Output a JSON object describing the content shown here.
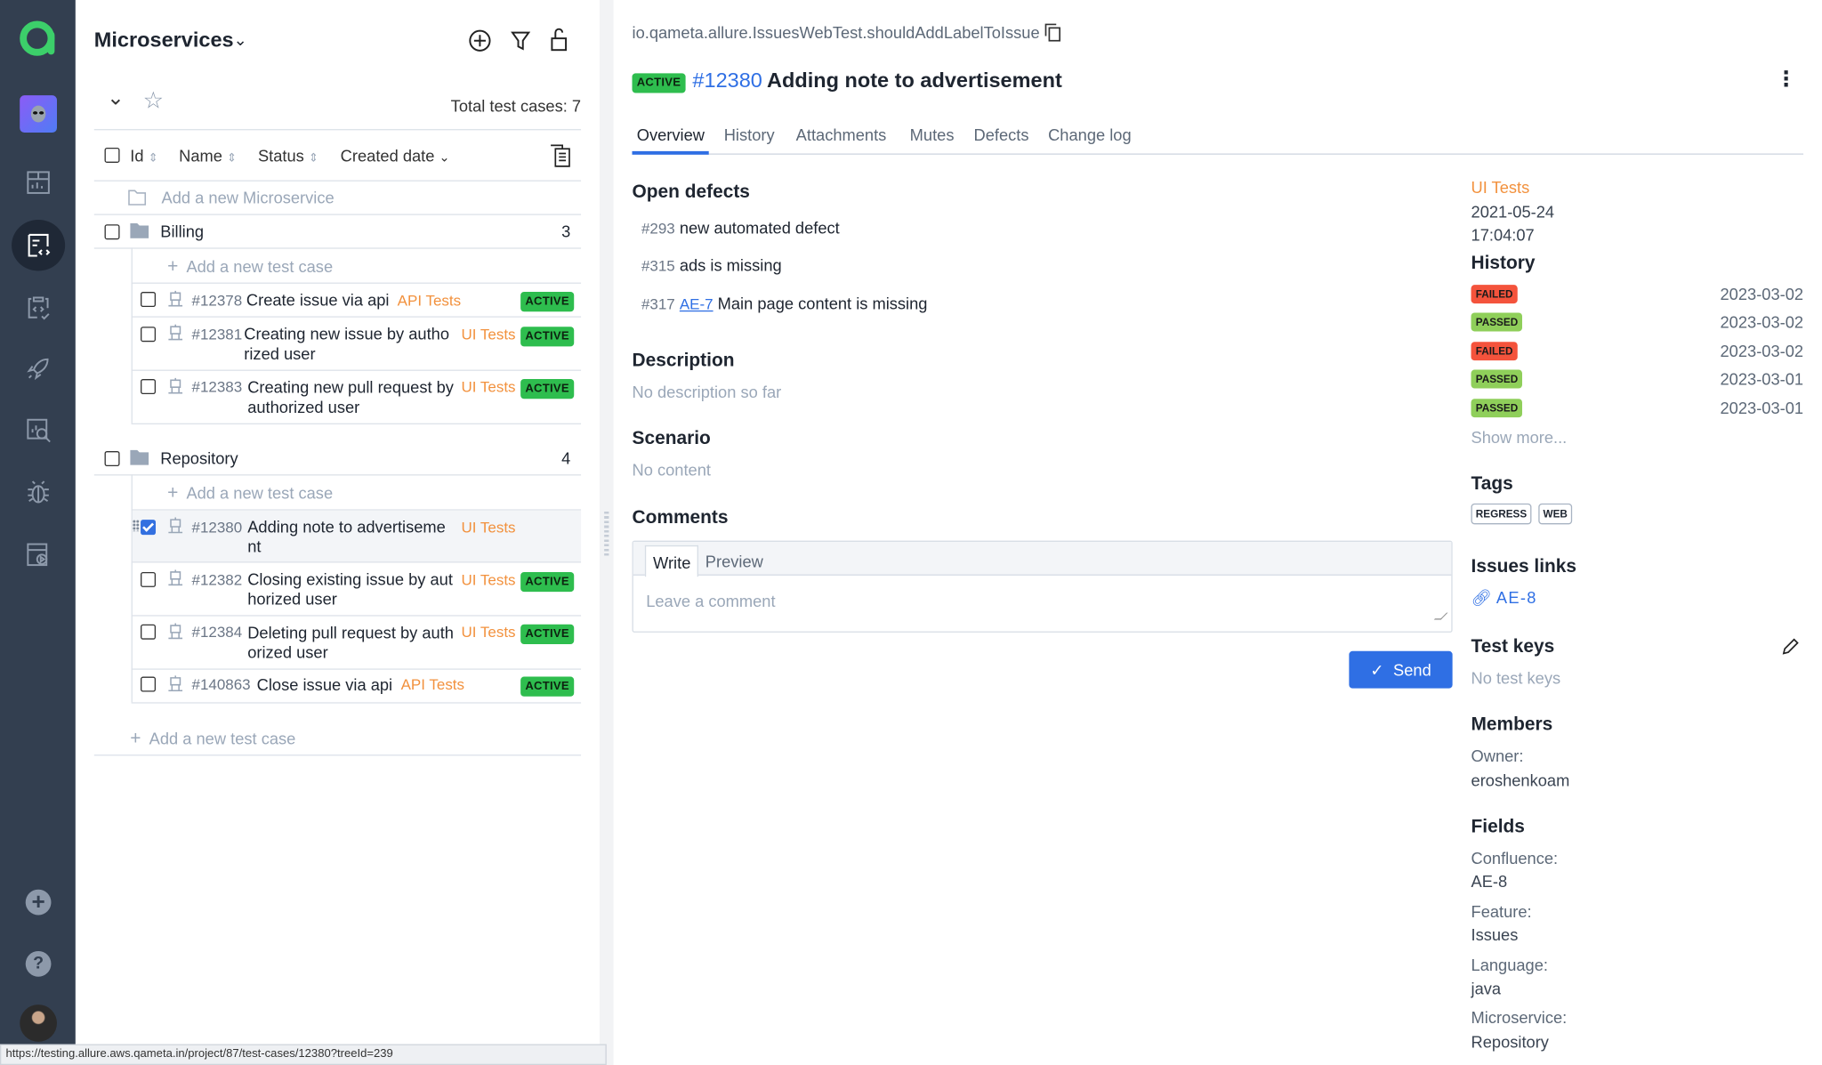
{
  "nav": {
    "items": [
      "dashboards-icon",
      "test-cases-icon",
      "test-plans-icon",
      "launches-icon",
      "analytics-icon",
      "defects-icon",
      "jobs-icon"
    ],
    "bottom": [
      "add-icon",
      "help-icon",
      "user-avatar"
    ]
  },
  "tree": {
    "title": "Microservices",
    "total": "Total test cases: 7",
    "columns": [
      "Id",
      "Name",
      "Status",
      "Created date"
    ],
    "add_microservice": "Add a new Microservice",
    "add_test_case": "Add a new test case",
    "groups": [
      {
        "name": "Billing",
        "count": "3",
        "cases": [
          {
            "id": "#12378",
            "name": "Create issue via api",
            "tag": "API Tests",
            "status": "ACTIVE"
          },
          {
            "id": "#12381",
            "name": "Creating new issue by authorized user",
            "tag": "UI Tests",
            "status": "ACTIVE"
          },
          {
            "id": "#12383",
            "name": "Creating new pull request by authorized user",
            "tag": "UI Tests",
            "status": "ACTIVE"
          }
        ]
      },
      {
        "name": "Repository",
        "count": "4",
        "cases": [
          {
            "id": "#12380",
            "name": "Adding note to advertisement",
            "tag": "UI Tests",
            "status": ""
          },
          {
            "id": "#12382",
            "name": "Closing existing issue by authorized user",
            "tag": "UI Tests",
            "status": "ACTIVE"
          },
          {
            "id": "#12384",
            "name": "Deleting pull request by authorized user",
            "tag": "UI Tests",
            "status": "ACTIVE"
          },
          {
            "id": "#140863",
            "name": "Close issue via api",
            "tag": "API Tests",
            "status": "ACTIVE"
          }
        ]
      }
    ]
  },
  "status_url": "https://testing.allure.aws.qameta.in/project/87/test-cases/12380?treeId=239",
  "detail": {
    "full_name": "io.qameta.allure.IssuesWebTest.shouldAddLabelToIssue",
    "status": "ACTIVE",
    "id": "#12380",
    "title": "Adding note to advertisement",
    "tabs": [
      "Overview",
      "History",
      "Attachments",
      "Mutes",
      "Defects",
      "Change log"
    ],
    "active_tab": "Overview",
    "open_defects_title": "Open defects",
    "defects": [
      {
        "id": "#293",
        "link": "",
        "text": "new automated defect"
      },
      {
        "id": "#315",
        "link": "",
        "text": "ads is missing"
      },
      {
        "id": "#317",
        "link": "AE-7",
        "text": "Main page content is missing"
      }
    ],
    "description_title": "Description",
    "description": "No description so far",
    "scenario_title": "Scenario",
    "scenario": "No content",
    "comments_title": "Comments",
    "write": "Write",
    "preview": "Preview",
    "comment_placeholder": "Leave a comment",
    "send": "Send",
    "layer": "UI Tests",
    "created_date": "2021-05-24",
    "created_time": "17:04:07",
    "history_title": "History",
    "history": [
      {
        "status": "FAILED",
        "date": "2023-03-02"
      },
      {
        "status": "PASSED",
        "date": "2023-03-02"
      },
      {
        "status": "FAILED",
        "date": "2023-03-02"
      },
      {
        "status": "PASSED",
        "date": "2023-03-01"
      },
      {
        "status": "PASSED",
        "date": "2023-03-01"
      }
    ],
    "show_more": "Show more...",
    "tags_title": "Tags",
    "tags": [
      "REGRESS",
      "WEB"
    ],
    "issues_title": "Issues links",
    "issue": "AE-8",
    "test_keys_title": "Test keys",
    "test_keys": "No test keys",
    "members_title": "Members",
    "owner_label": "Owner:",
    "owner": "eroshenkoam",
    "fields_title": "Fields",
    "fields": [
      {
        "label": "Confluence:",
        "value": "AE-8"
      },
      {
        "label": "Feature:",
        "value": "Issues"
      },
      {
        "label": "Language:",
        "value": "java"
      },
      {
        "label": "Microservice:",
        "value": "Repository"
      }
    ]
  },
  "colors": {
    "accent": "#2f6fe4",
    "active": "#2ebd4e",
    "failed": "#f4533c",
    "passed": "#8fcf5a",
    "tag": "#f2913d",
    "nav": "#333f50"
  }
}
